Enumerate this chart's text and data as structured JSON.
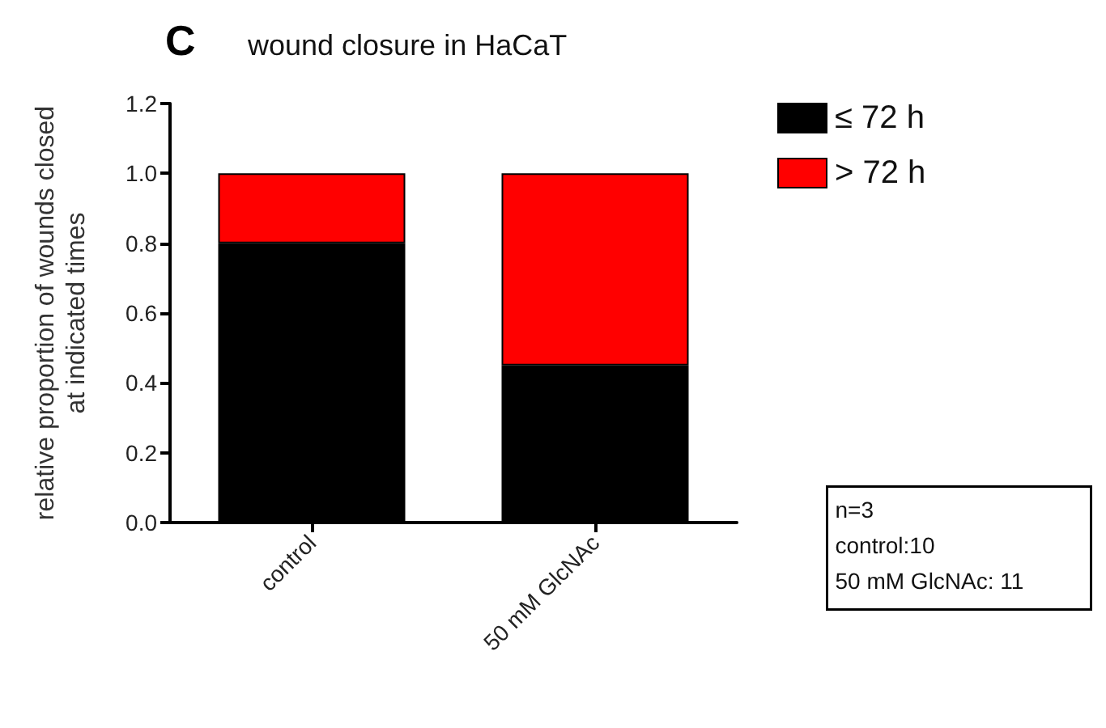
{
  "chart_data": {
    "type": "bar",
    "title": "wound closure in HaCaT",
    "ylabel": "relative proportion of wounds closed\nat indicated times",
    "categories": [
      "control",
      "50 mM GlcNAc"
    ],
    "series": [
      {
        "name": "≤ 72 h",
        "color": "#000000",
        "values": [
          0.8,
          0.45
        ]
      },
      {
        "name": "> 72 h",
        "color": "#ff0000",
        "values": [
          0.2,
          0.55
        ]
      }
    ],
    "stacked": true,
    "ylim": [
      0,
      1.2
    ],
    "yticks": [
      {
        "value": 0,
        "label": "0.0"
      },
      {
        "value": 0.2,
        "label": "0.2"
      },
      {
        "value": 0.4,
        "label": "0.4"
      },
      {
        "value": 0.6,
        "label": "0.6"
      },
      {
        "value": 0.8,
        "label": "0.8"
      },
      {
        "value": 1,
        "label": "1.0"
      },
      {
        "value": 1.2,
        "label": "1.2"
      }
    ],
    "grid": false,
    "legend": "top right",
    "annotations": [
      "C",
      "n=3",
      "control:10",
      "50 mM GlcNAc: 11"
    ]
  }
}
